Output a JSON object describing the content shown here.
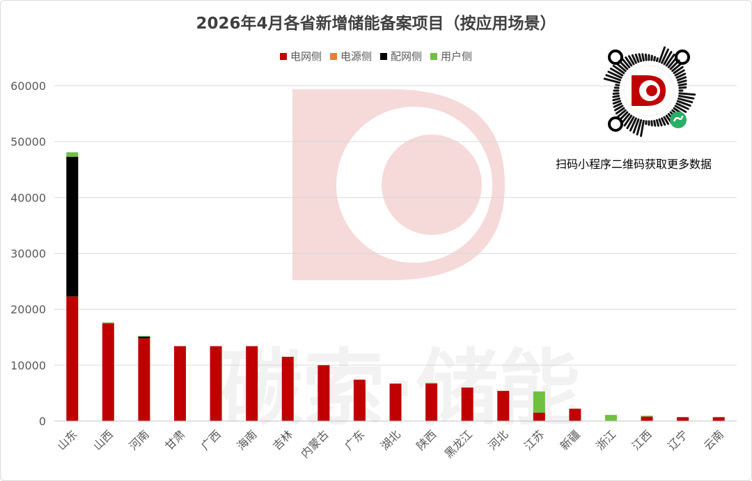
{
  "chart_data": {
    "type": "bar",
    "stacked": true,
    "title": "2026年4月各省新增储能备案项目（按应用场景）",
    "categories": [
      "山东",
      "山西",
      "河南",
      "甘肃",
      "广西",
      "海南",
      "吉林",
      "内蒙古",
      "广东",
      "湖北",
      "陕西",
      "黑龙江",
      "河北",
      "江苏",
      "新疆",
      "浙江",
      "江西",
      "辽宁",
      "云南"
    ],
    "series": [
      {
        "name": "电网侧",
        "color": "#c00000",
        "values": [
          22300,
          17500,
          14800,
          13400,
          13400,
          13400,
          11500,
          10000,
          7400,
          6700,
          6700,
          6000,
          5400,
          1500,
          2200,
          0,
          800,
          700,
          700
        ]
      },
      {
        "name": "电源侧",
        "color": "#ed7d31",
        "values": [
          0,
          0,
          0,
          0,
          0,
          0,
          0,
          0,
          0,
          0,
          0,
          0,
          0,
          0,
          0,
          0,
          0,
          0,
          0
        ]
      },
      {
        "name": "配网侧",
        "color": "#000000",
        "values": [
          25000,
          0,
          300,
          0,
          0,
          0,
          0,
          0,
          0,
          0,
          0,
          0,
          0,
          0,
          0,
          0,
          0,
          0,
          0
        ]
      },
      {
        "name": "用户侧",
        "color": "#70c040",
        "values": [
          800,
          150,
          150,
          0,
          0,
          0,
          0,
          0,
          0,
          0,
          150,
          0,
          0,
          3800,
          0,
          1100,
          150,
          0,
          0
        ]
      }
    ],
    "ylim": [
      0,
      60000
    ],
    "yticks": [
      0,
      10000,
      20000,
      30000,
      40000,
      50000,
      60000
    ],
    "grid": true,
    "legend_position": "top-center",
    "xlabel": "",
    "ylabel": ""
  },
  "watermark_text": "碳索·储能",
  "qr": {
    "caption": "扫码小程序二维码获取更多数据",
    "icon": "wechat-miniprogram-qr-code"
  },
  "colors": {
    "watermark": "#f6d9d9",
    "grid": "#d9d9d9",
    "axis_text": "#595959",
    "title": "#404040"
  }
}
